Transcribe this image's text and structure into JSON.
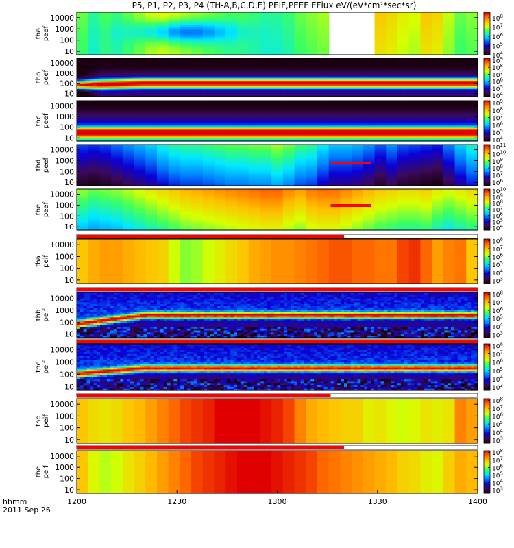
{
  "title": "P5, P1, P2, P3, P4 (TH-A,B,C,D,E) PEIF,PEEF EFlux eV/(eV*cm²*sec*sr)",
  "colorscale": [
    "#1a0010",
    "#3b0a5a",
    "#0b00d8",
    "#0080ff",
    "#00e8ff",
    "#3cff60",
    "#d8ff00",
    "#ffc000",
    "#ff6a00",
    "#e00000"
  ],
  "bar_colors": {
    "red": "#ff0000",
    "yellow": "#ffff00",
    "white": "#ffffff"
  },
  "chart_data": {
    "type": "heatmap",
    "x_label_row1": "hhmm",
    "x_label_row2": "2011 Sep 26",
    "x_ticks": [
      "1200",
      "1230",
      "1300",
      "1330",
      "1400"
    ],
    "x_range_min": [
      0,
      120
    ],
    "y_log": true,
    "panels": [
      {
        "id": "tha-peef",
        "label1": "tha",
        "label2": "peef",
        "y_ticks": [
          "10000",
          "1000",
          "100",
          "10"
        ],
        "y_range": [
          5,
          30000
        ],
        "cb_ticks": [
          [
            "10",
            8
          ],
          [
            "10",
            7
          ],
          [
            "10",
            6
          ],
          [
            "10",
            5
          ],
          [
            "10",
            4
          ]
        ],
        "cb_range": [
          4,
          8.6
        ],
        "gap": [
          75,
          90
        ],
        "base": [
          6.6,
          6.3,
          6.5,
          6.4,
          6.6,
          6.8,
          7,
          7.1,
          7.0,
          6.9,
          6.8,
          6.7,
          6.6,
          6.5,
          6.5,
          6.4,
          6.3,
          6.3,
          6.4,
          6.6,
          6.7,
          6.8,
          6.8,
          6.7,
          6.9,
          7.2,
          7.4,
          7.3,
          7.1,
          7.0,
          7.4,
          7.3,
          6.9,
          6.6,
          6.7
        ],
        "blob": {
          "x": 32,
          "y": 0.55,
          "w": 14,
          "h": 0.25,
          "amp": -1.4
        },
        "gamma": 0.2
      },
      {
        "id": "thb-peef",
        "label1": "thb",
        "label2": "peef",
        "y_ticks": [
          "10000",
          "1000",
          "100",
          "10"
        ],
        "y_range": [
          5,
          30000
        ],
        "cb_ticks": [
          [
            "10",
            9
          ],
          [
            "10",
            8
          ],
          [
            "10",
            7
          ],
          [
            "10",
            6
          ],
          [
            "10",
            5
          ],
          [
            "10",
            4
          ]
        ],
        "cb_range": [
          3.8,
          9.3
        ],
        "peak": {
          "center": [
            0.3,
            0.35
          ],
          "width": 0.12,
          "amp": 5.2,
          "floor": 4.0,
          "slope": -1.3
        },
        "gamma": 1
      },
      {
        "id": "thc-peef",
        "label1": "thc",
        "label2": "peef",
        "y_ticks": [
          "10000",
          "1000",
          "100",
          "10"
        ],
        "y_range": [
          5,
          30000
        ],
        "cb_ticks": [
          [
            "10",
            9
          ],
          [
            "10",
            8
          ],
          [
            "10",
            7
          ],
          [
            "10",
            6
          ],
          [
            "10",
            5
          ],
          [
            "10",
            4
          ]
        ],
        "cb_range": [
          3.8,
          9.3
        ],
        "peak": {
          "center": [
            0.2,
            0.2
          ],
          "width": 0.14,
          "amp": 5.0,
          "floor": 4.2,
          "slope": -1.4
        },
        "gamma": 1
      },
      {
        "id": "thd-peef",
        "label1": "thd",
        "label2": "peef",
        "y_ticks": [
          "10000",
          "1000",
          "100",
          "10"
        ],
        "y_range": [
          5,
          30000
        ],
        "cb_ticks": [
          [
            "10",
            11
          ],
          [
            "10",
            10
          ],
          [
            "10",
            9
          ],
          [
            "10",
            8
          ],
          [
            "10",
            7
          ],
          [
            "10",
            6
          ]
        ],
        "cb_range": [
          5.5,
          11.3
        ],
        "base": [
          6.4,
          6.3,
          6.4,
          6.6,
          6.8,
          7.0,
          7.2,
          7.5,
          7.7,
          7.8,
          7.8,
          7.9,
          8.0,
          8.1,
          8.1,
          8.2,
          8.2,
          8.4,
          8.2,
          7.9,
          7.8,
          7.4,
          7.1,
          7.1,
          7.0,
          6.8,
          6.5,
          6.8,
          6.5,
          6.4,
          6.3,
          6.2,
          6.7,
          7.2,
          7.6
        ],
        "dark_bottom": true,
        "redline": [
          76,
          88,
          0.55
        ],
        "gamma": 0.6
      },
      {
        "id": "the-peef",
        "label1": "the",
        "label2": "peef",
        "y_ticks": [
          "10000",
          "1000",
          "100",
          "10"
        ],
        "y_range": [
          5,
          30000
        ],
        "cb_ticks": [
          [
            "10",
            10
          ],
          [
            "10",
            9
          ],
          [
            "10",
            8
          ],
          [
            "10",
            7
          ],
          [
            "10",
            6
          ],
          [
            "10",
            5
          ],
          [
            "10",
            4
          ]
        ],
        "cb_range": [
          3.6,
          10.3
        ],
        "base": [
          7.0,
          6.8,
          6.9,
          7.0,
          7.2,
          7.4,
          7.6,
          7.8,
          8.0,
          8.2,
          8.3,
          8.4,
          8.5,
          8.6,
          8.7,
          8.8,
          8.9,
          8.9,
          8.6,
          8.4,
          8.7,
          8.8,
          8.8,
          8.6,
          8.4,
          8.2,
          8.0,
          7.9,
          7.8,
          7.8,
          7.9,
          7.6,
          7.4,
          7.6,
          7.8
        ],
        "dark_bottom": true,
        "redline": [
          76,
          88,
          0.6
        ],
        "gamma": 0.6
      },
      {
        "id": "tha-peif",
        "label1": "tha",
        "label2": "peif",
        "y_ticks": [
          "10000",
          "1000",
          "100",
          "10"
        ],
        "y_range": [
          5,
          30000
        ],
        "cb_ticks": [
          [
            "10",
            8
          ],
          [
            "10",
            7
          ],
          [
            "10",
            6
          ],
          [
            "10",
            5
          ],
          [
            "10",
            4
          ],
          [
            "10",
            3
          ]
        ],
        "cb_range": [
          2.6,
          8.2
        ],
        "strip": [
          0,
          80
        ],
        "base": [
          6.9,
          7.1,
          7.2,
          7.2,
          7.1,
          7.0,
          6.9,
          6.8,
          6.3,
          6.0,
          6.1,
          6.3,
          6.5,
          6.7,
          6.9,
          7.1,
          7.2,
          7.3,
          7.3,
          7.4,
          7.5,
          7.6,
          7.7,
          7.7,
          7.6,
          7.6,
          7.5,
          7.5,
          7.8,
          7.9,
          7.6,
          7.2,
          7.4,
          7.5,
          6.9
        ],
        "gamma": 0
      },
      {
        "id": "thb-peif",
        "label1": "thb",
        "label2": "peif",
        "y_ticks": [
          "10000",
          "1000",
          "100",
          "10"
        ],
        "y_range": [
          5,
          30000
        ],
        "cb_ticks": [
          [
            "10",
            8
          ],
          [
            "10",
            7
          ],
          [
            "10",
            6
          ],
          [
            "10",
            5
          ],
          [
            "10",
            4
          ],
          [
            "10",
            3
          ]
        ],
        "cb_range": [
          2.6,
          8.2
        ],
        "strip": [
          0,
          120
        ],
        "peak": {
          "center": [
            0.3,
            0.5
          ],
          "width": 0.07,
          "amp": 4.6,
          "floor": 3.6,
          "slope": 0.4
        },
        "noisy": true,
        "gamma": 1
      },
      {
        "id": "thc-peif",
        "label1": "thc",
        "label2": "peif",
        "y_ticks": [
          "10000",
          "1000",
          "100",
          "10"
        ],
        "y_range": [
          5,
          30000
        ],
        "cb_ticks": [
          [
            "10",
            8
          ],
          [
            "10",
            7
          ],
          [
            "10",
            6
          ],
          [
            "10",
            5
          ],
          [
            "10",
            4
          ],
          [
            "10",
            3
          ]
        ],
        "cb_range": [
          2.6,
          8.2
        ],
        "strip": [
          0,
          120
        ],
        "peak": {
          "center": [
            0.35,
            0.48
          ],
          "width": 0.07,
          "amp": 4.6,
          "floor": 3.6,
          "slope": 0.4
        },
        "noisy": true,
        "gamma": 1
      },
      {
        "id": "thd-peif",
        "label1": "thd",
        "label2": "peif",
        "y_ticks": [
          "10000",
          "1000",
          "100",
          "10"
        ],
        "y_range": [
          5,
          30000
        ],
        "cb_ticks": [
          [
            "10",
            8
          ],
          [
            "10",
            7
          ],
          [
            "10",
            6
          ],
          [
            "10",
            5
          ],
          [
            "10",
            4
          ],
          [
            "10",
            3
          ]
        ],
        "cb_range": [
          2.6,
          8.2
        ],
        "strip": [
          0,
          76
        ],
        "base": [
          6.9,
          6.7,
          6.6,
          6.7,
          6.9,
          7.0,
          7.2,
          7.4,
          7.6,
          7.8,
          7.9,
          8.0,
          8.2,
          8.3,
          8.3,
          8.2,
          8.1,
          8.0,
          7.8,
          7.4,
          7.1,
          7.0,
          6.9,
          6.8,
          6.8,
          6.5,
          6.6,
          6.4,
          6.3,
          6.4,
          6.6,
          6.5,
          6.6,
          7.4,
          7.2
        ],
        "gamma": 0
      },
      {
        "id": "the-peif",
        "label1": "the",
        "label2": "peif",
        "y_ticks": [
          "10000",
          "1000",
          "100",
          "10"
        ],
        "y_range": [
          5,
          30000
        ],
        "cb_ticks": [
          [
            "10",
            8
          ],
          [
            "10",
            7
          ],
          [
            "10",
            6
          ],
          [
            "10",
            5
          ],
          [
            "10",
            4
          ],
          [
            "10",
            3
          ]
        ],
        "cb_range": [
          2.6,
          8.2
        ],
        "strip": [
          0,
          80
        ],
        "base": [
          6.9,
          6.4,
          6.2,
          6.3,
          6.6,
          6.8,
          7.0,
          7.2,
          7.4,
          7.6,
          7.8,
          7.9,
          8.0,
          8.1,
          8.2,
          8.2,
          8.2,
          8.1,
          8.0,
          7.9,
          7.8,
          7.6,
          7.5,
          7.4,
          7.3,
          7.2,
          7.1,
          7.0,
          6.8,
          6.7,
          6.5,
          6.4,
          6.8,
          7.1,
          7.0
        ],
        "gamma": 0
      }
    ]
  }
}
